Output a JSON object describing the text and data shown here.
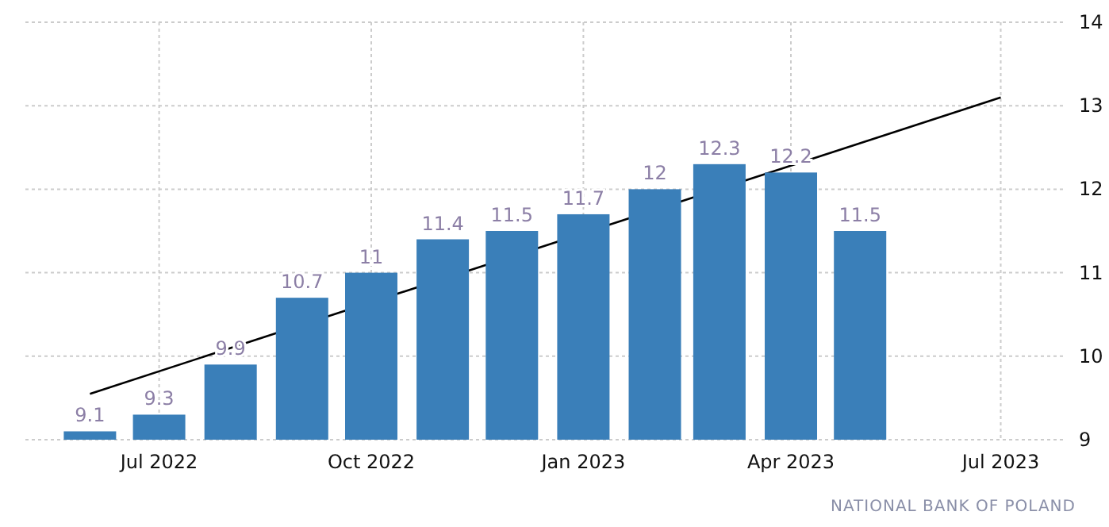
{
  "chart_data": {
    "type": "bar",
    "x": [
      "2022-06",
      "2022-07",
      "2022-08",
      "2022-09",
      "2022-10",
      "2022-11",
      "2022-12",
      "2023-01",
      "2023-02",
      "2023-03",
      "2023-04",
      "2023-05"
    ],
    "series": [
      {
        "color": "#3a7fb9",
        "values": [
          9.1,
          9.3,
          9.9,
          10.7,
          11,
          11.4,
          11.5,
          11.7,
          12,
          12.3,
          12.2,
          11.5
        ],
        "value_labels": [
          "9.1",
          "9.3",
          "9.9",
          "10.7",
          "11",
          "11.4",
          "11.5",
          "11.7",
          "12",
          "12.3",
          "12.2",
          "11.5"
        ]
      },
      {
        "type": "line",
        "color": "#000000",
        "x": [
          "2022-06",
          "2023-07"
        ],
        "values": [
          9.55,
          13.1
        ]
      }
    ],
    "xlim": [
      "2022-05-04",
      "2023-07-28"
    ],
    "xticks": [
      {
        "value": "2022-07",
        "label": "Jul 2022"
      },
      {
        "value": "2022-10",
        "label": "Oct 2022"
      },
      {
        "value": "2023-01",
        "label": "Jan 2023"
      },
      {
        "value": "2023-04",
        "label": "Apr 2023"
      },
      {
        "value": "2023-07",
        "label": "Jul 2023"
      }
    ],
    "ylim": [
      9,
      14
    ],
    "yticks": [
      9,
      10,
      11,
      12,
      13,
      14
    ],
    "grid": true,
    "annotations": [
      "NATIONAL BANK OF POLAND"
    ]
  }
}
